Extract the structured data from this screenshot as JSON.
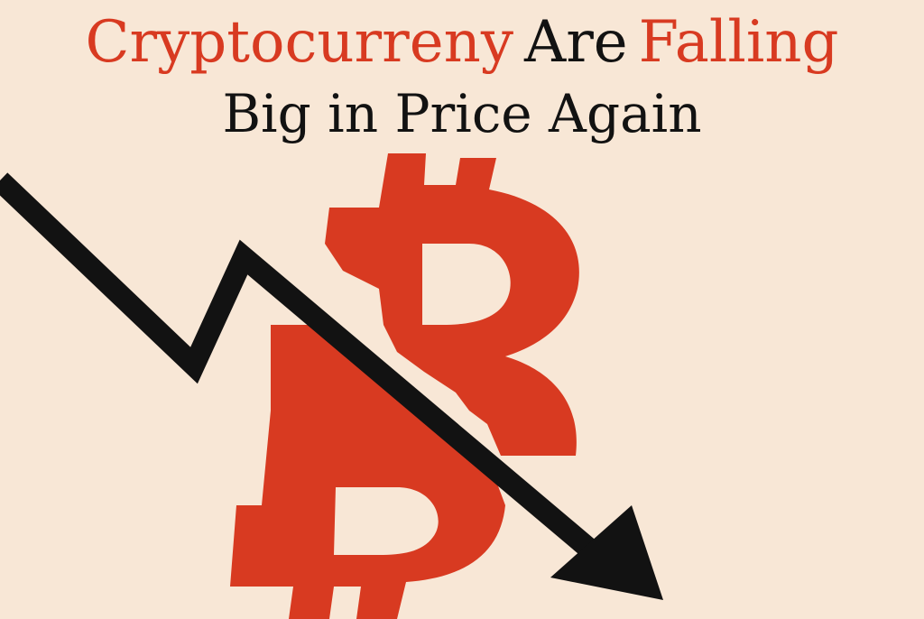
{
  "headline": {
    "word1": "Cryptocurreny",
    "word2": "Are",
    "word3": "Falling",
    "line2": "Big in Price Again"
  },
  "colors": {
    "background": "#f8e7d6",
    "accent_red": "#d83a21",
    "dark": "#121212"
  },
  "icons": {
    "coin": "bitcoin-symbol",
    "trend": "falling-arrow"
  }
}
